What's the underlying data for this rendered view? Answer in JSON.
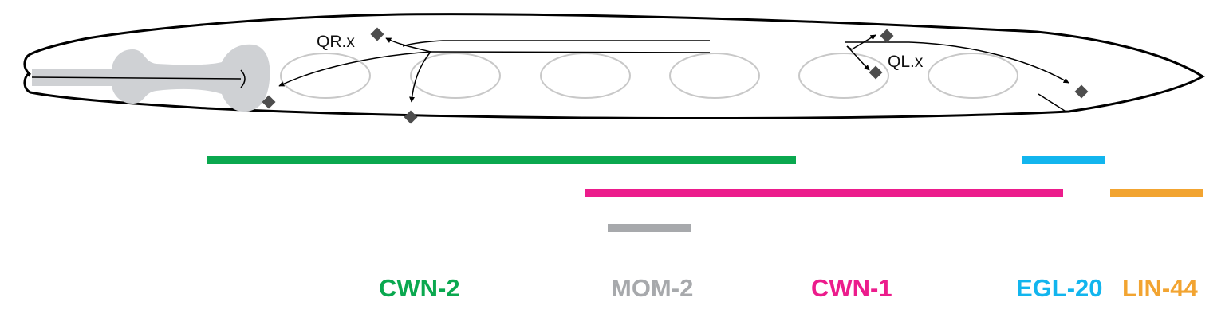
{
  "cell_labels": {
    "qr": "QR.x",
    "ql": "QL.x"
  },
  "wnt_domains": [
    {
      "id": "cwn2",
      "name": "CWN-2",
      "color": "#0aa84f"
    },
    {
      "id": "mom2",
      "name": "MOM-2",
      "color": "#a7a9ac"
    },
    {
      "id": "cwn1",
      "name": "CWN-1",
      "color": "#ec1c8c"
    },
    {
      "id": "egl20",
      "name": "EGL-20",
      "color": "#12b5ee"
    },
    {
      "id": "lin44",
      "name": "LIN-44",
      "color": "#f2a431"
    }
  ],
  "colors": {
    "outline": "#000000",
    "pharynx": "#cfd1d4",
    "nuclei_outline": "#c8c8c8",
    "neuron_marker": "#4d4d4d"
  }
}
